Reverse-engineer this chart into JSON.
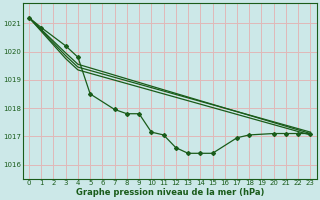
{
  "xlabel": "Graphe pression niveau de la mer (hPa)",
  "bg_color": "#cce8e8",
  "grid_color_h": "#d8b8b8",
  "grid_color_v": "#d8b8b8",
  "line_color": "#1a5c1a",
  "ylim": [
    1015.5,
    1021.7
  ],
  "xlim": [
    -0.5,
    23.5
  ],
  "yticks": [
    1016,
    1017,
    1018,
    1019,
    1020,
    1021
  ],
  "xticks": [
    0,
    1,
    2,
    3,
    4,
    5,
    6,
    7,
    8,
    9,
    10,
    11,
    12,
    13,
    14,
    15,
    16,
    17,
    18,
    19,
    20,
    21,
    22,
    23
  ],
  "line1_x": [
    0,
    1,
    3,
    4,
    5,
    7,
    8,
    9,
    10,
    11,
    12,
    13,
    14,
    15,
    17,
    18,
    20,
    21,
    22,
    23
  ],
  "line1_y": [
    1021.2,
    1020.85,
    1020.2,
    1019.8,
    1018.5,
    1017.95,
    1017.8,
    1017.8,
    1017.15,
    1017.05,
    1016.6,
    1016.4,
    1016.4,
    1016.4,
    1016.95,
    1017.05,
    1017.1,
    1017.1,
    1017.1,
    1017.1
  ],
  "line2_x": [
    0,
    3,
    4,
    23
  ],
  "line2_y": [
    1021.2,
    1019.95,
    1019.55,
    1017.1
  ],
  "line3_x": [
    0,
    3,
    4,
    23
  ],
  "line3_y": [
    1021.2,
    1019.85,
    1019.45,
    1017.15
  ],
  "line4_x": [
    0,
    3,
    4,
    23
  ],
  "line4_y": [
    1021.2,
    1019.75,
    1019.35,
    1017.05
  ]
}
